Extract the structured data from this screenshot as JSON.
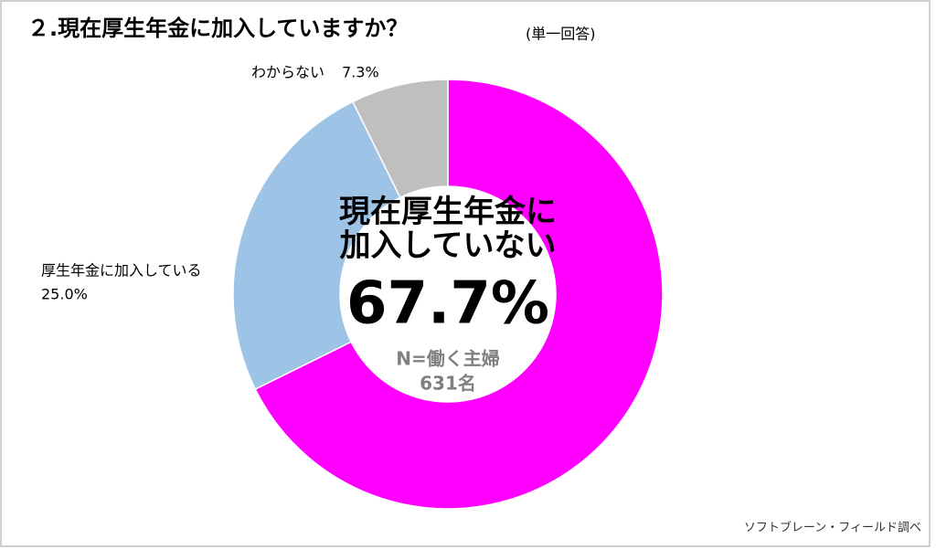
{
  "chart_data": {
    "type": "donut",
    "title": "２.現在厚生年金に加入していますか？",
    "subtitle": "(単一回答)",
    "categories": [
      "現在厚生年金に加入していない",
      "厚生年金に加入している",
      "わからない"
    ],
    "values": [
      67.7,
      25.0,
      7.3
    ],
    "value_labels": [
      "67.7%",
      "25.0%",
      "7.3%"
    ],
    "colors": [
      "#ff00ff",
      "#9dc3e6",
      "#bfbfbf"
    ],
    "annotations": [
      "N=働く主婦",
      "631名"
    ],
    "source": "ソフトブレーン・フィールド調べ"
  }
}
